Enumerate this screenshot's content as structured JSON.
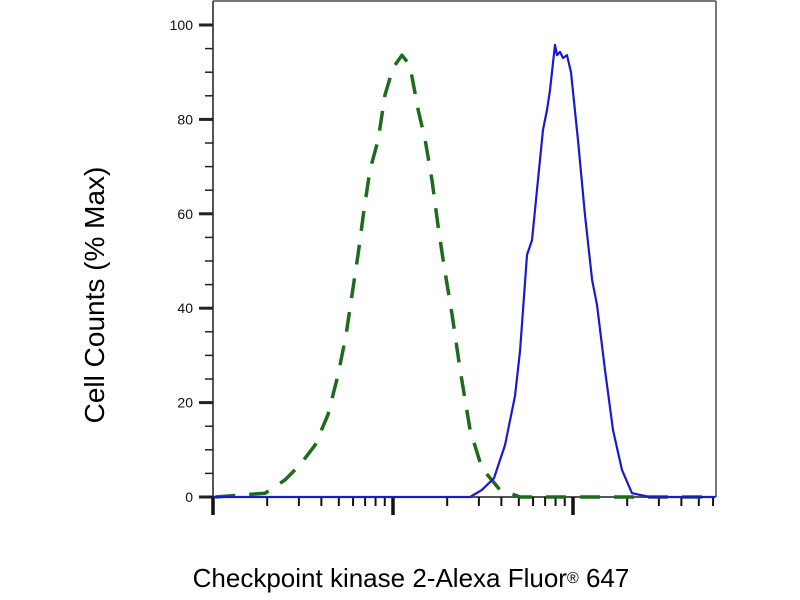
{
  "chart_data": {
    "type": "line",
    "title": "",
    "xlabel_main": "Checkpoint kinase 2-Alexa Fluor",
    "xlabel_reg": "®",
    "xlabel_tail": " 647",
    "ylabel": "Cell Counts (% Max)",
    "x_scale": "log",
    "xlim": [
      1,
      620
    ],
    "ylim": [
      0,
      100
    ],
    "yticks": [
      0,
      20,
      40,
      60,
      80,
      100
    ],
    "ytick_labels": [
      "0",
      "20",
      "40",
      "60",
      "80",
      "100"
    ],
    "grid": false,
    "series": [
      {
        "style": "dashed",
        "color": "#1e6b1e",
        "x": [
          1.03,
          1.41,
          1.95,
          2.51,
          3.04,
          3.69,
          4.35,
          4.95,
          5.48,
          5.92,
          6.39,
          6.9,
          7.45,
          8.26,
          9.03,
          10.0,
          11.2,
          12.4,
          13.8,
          15.1,
          16.5,
          17.8,
          19.2,
          21.3,
          23.6,
          26.8,
          31.2,
          39.3,
          50.8,
          84.7,
          141,
          236,
          615
        ],
        "y": [
          0,
          0.4,
          0.8,
          3.6,
          6.8,
          11,
          17.4,
          25.8,
          34.3,
          42.8,
          51.3,
          60.8,
          69.3,
          75.6,
          85.2,
          90.9,
          93.6,
          91.5,
          82,
          75.6,
          67,
          57.4,
          49,
          38.6,
          27,
          14.2,
          6.1,
          1.5,
          0,
          0,
          0,
          0,
          0
        ]
      },
      {
        "style": "solid",
        "color": "#1a1acc",
        "x": [
          1,
          21.5,
          26.8,
          31.2,
          36.4,
          41.9,
          47.6,
          50.8,
          55.5,
          59.2,
          63.9,
          68.1,
          71.7,
          74.5,
          79.4,
          81.5,
          84.7,
          88.0,
          92.6,
          97.5,
          106.6,
          116.6,
          127.6,
          135.9,
          150.6,
          166.8,
          187.1,
          212.8,
          267.7,
          615
        ],
        "y": [
          0,
          0,
          0,
          1.5,
          4.0,
          11,
          21.4,
          31.1,
          51.3,
          54.4,
          67.2,
          77.8,
          82,
          86.2,
          95.8,
          93.6,
          94.3,
          93,
          93.6,
          90,
          75.6,
          59.7,
          46,
          40.7,
          26.9,
          14.2,
          5.7,
          0.8,
          0,
          0
        ]
      }
    ]
  }
}
